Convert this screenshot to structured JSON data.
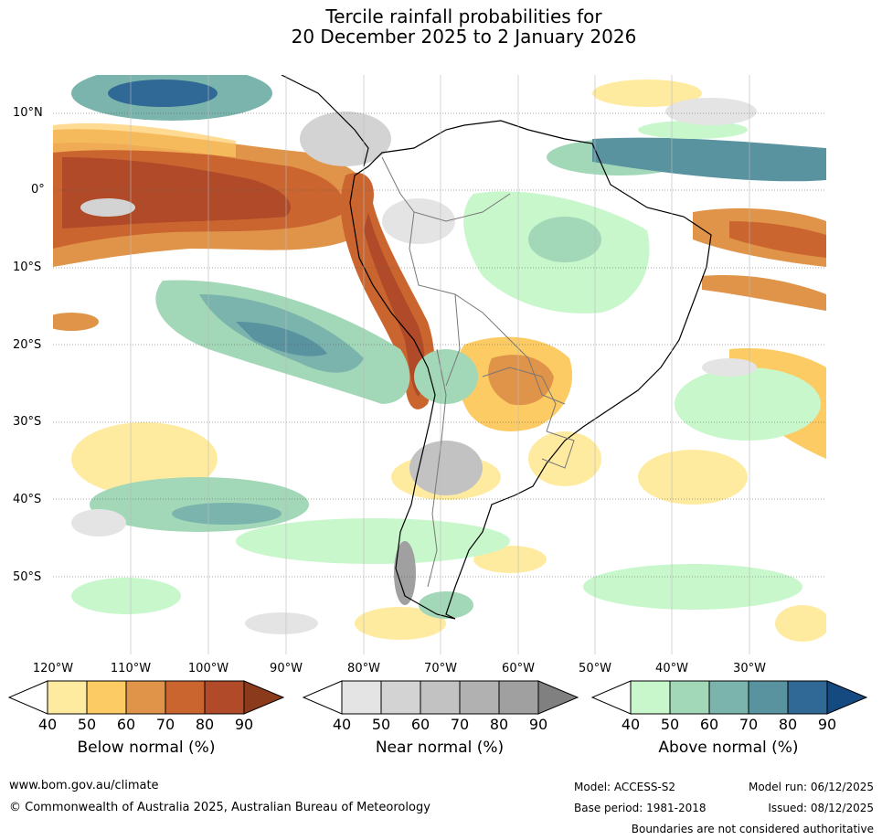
{
  "title": {
    "line1": "Tercile rainfall probabilities for",
    "line2": "20 December 2025 to 2 January 2026"
  },
  "axes": {
    "lat_labels": [
      "10°N",
      "0°",
      "10°S",
      "20°S",
      "30°S",
      "40°S",
      "50°S"
    ],
    "lon_labels": [
      "120°W",
      "110°W",
      "100°W",
      "90°W",
      "80°W",
      "70°W",
      "60°W",
      "50°W",
      "40°W",
      "30°W"
    ]
  },
  "legend": {
    "ticks": [
      "40",
      "50",
      "60",
      "70",
      "80",
      "90"
    ],
    "below": {
      "label": "Below normal (%)",
      "colors": [
        "#ffeba0",
        "#fdcb64",
        "#e09449",
        "#cb6530",
        "#b04a28",
        "#8c3a1c"
      ]
    },
    "near": {
      "label": "Near normal (%)",
      "colors": [
        "#e4e4e4",
        "#d3d3d3",
        "#c2c2c2",
        "#b1b1b1",
        "#a0a0a0",
        "#808080"
      ]
    },
    "above": {
      "label": "Above normal (%)",
      "colors": [
        "#c8f7cc",
        "#a2d7b8",
        "#7bb4ac",
        "#5a93a0",
        "#306896",
        "#154a80"
      ]
    }
  },
  "footer": {
    "website": "www.bom.gov.au/climate",
    "copyright": "© Commonwealth of Australia 2025, Australian Bureau of Meteorology",
    "model": "Model: ACCESS-S2",
    "model_run": "Model run: 06/12/2025",
    "base_period": "Base period: 1981-2018",
    "issued": "Issued: 08/12/2025",
    "boundaries_note": "Boundaries are not considered authoritative"
  }
}
